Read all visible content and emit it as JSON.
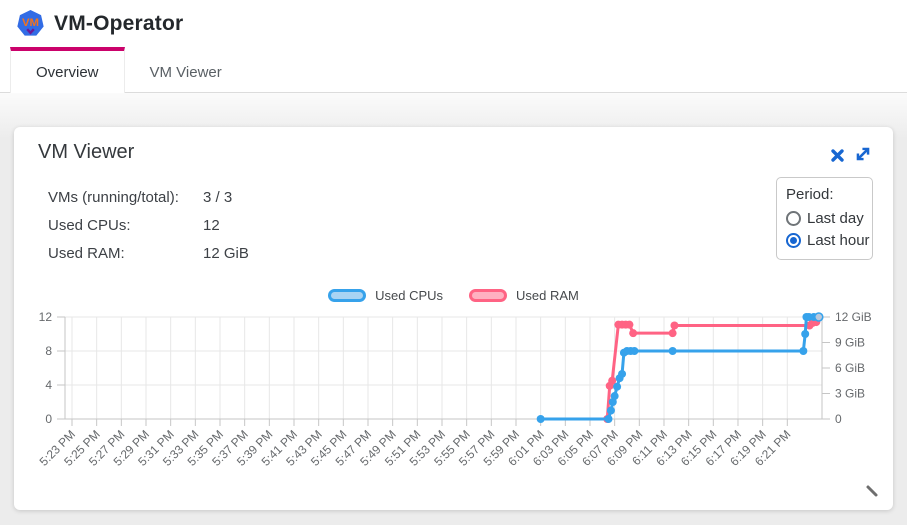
{
  "header": {
    "logo_text": "VM",
    "app_title": "VM-Operator",
    "tabs": [
      {
        "label": "Overview",
        "active": true
      },
      {
        "label": "VM Viewer",
        "active": false
      }
    ]
  },
  "card": {
    "title": "VM Viewer",
    "stats": [
      {
        "label": "VMs (running/total):",
        "value": "3 / 3"
      },
      {
        "label": "Used CPUs:",
        "value": "12"
      },
      {
        "label": "Used RAM:",
        "value": "12 GiB"
      }
    ],
    "period": {
      "label": "Period:",
      "options": [
        {
          "label": "Last day",
          "selected": false
        },
        {
          "label": "Last hour",
          "selected": true
        }
      ]
    }
  },
  "colors": {
    "tab_accent": "#cb026b",
    "icon_blue": "#1766d1",
    "cpu_blue": "#36a2eb",
    "ram_pink": "#ff6384"
  },
  "chart_data": {
    "type": "line",
    "legend": [
      {
        "label": "Used CPUs",
        "color": "#36a2eb",
        "fill": "#a8d3f3"
      },
      {
        "label": "Used RAM",
        "color": "#ff6384",
        "fill": "#ffb0c1"
      }
    ],
    "x_tick_labels": [
      "5:23 PM",
      "5:25 PM",
      "5:27 PM",
      "5:29 PM",
      "5:31 PM",
      "5:33 PM",
      "5:35 PM",
      "5:37 PM",
      "5:39 PM",
      "5:41 PM",
      "5:43 PM",
      "5:45 PM",
      "5:47 PM",
      "5:49 PM",
      "5:51 PM",
      "5:53 PM",
      "5:55 PM",
      "5:57 PM",
      "5:59 PM",
      "6:01 PM",
      "6:03 PM",
      "6:05 PM",
      "6:07 PM",
      "6:09 PM",
      "6:11 PM",
      "6:13 PM",
      "6:15 PM",
      "6:17 PM",
      "6:19 PM",
      "6:21 PM"
    ],
    "x_minutes_per_tick": 2,
    "y_left": {
      "range": [
        0,
        12
      ],
      "ticks": [
        {
          "v": 0,
          "label": "0"
        },
        {
          "v": 4,
          "label": "4"
        },
        {
          "v": 8,
          "label": "8"
        },
        {
          "v": 12,
          "label": "12"
        }
      ]
    },
    "y_right": {
      "range": [
        0,
        12
      ],
      "ticks": [
        {
          "v": 0,
          "label": "0"
        },
        {
          "v": 3,
          "label": "3 GiB"
        },
        {
          "v": 6,
          "label": "6 GiB"
        },
        {
          "v": 9,
          "label": "9 GiB"
        },
        {
          "v": 12,
          "label": "12 GiB"
        }
      ]
    },
    "series": [
      {
        "name": "Used RAM",
        "axis": "right",
        "color": "#ff6384",
        "points": [
          [
            43.4,
            0
          ],
          [
            43.6,
            3.9
          ],
          [
            43.8,
            4.5
          ],
          [
            44.3,
            11.1
          ],
          [
            44.6,
            11.1
          ],
          [
            44.9,
            11.1
          ],
          [
            45.2,
            11.1
          ],
          [
            45.5,
            10.1
          ],
          [
            48.7,
            10.1
          ],
          [
            48.85,
            11
          ],
          [
            59.8,
            11
          ],
          [
            60.05,
            11.3
          ],
          [
            60.35,
            11.4
          ]
        ]
      },
      {
        "name": "Used CPUs",
        "axis": "left",
        "color": "#36a2eb",
        "end_fill": "#b9c8dc",
        "points": [
          [
            38,
            0
          ],
          [
            43.5,
            0
          ],
          [
            43.7,
            1
          ],
          [
            43.85,
            2
          ],
          [
            44.0,
            2.7
          ],
          [
            44.2,
            3.8
          ],
          [
            44.4,
            4.8
          ],
          [
            44.6,
            5.3
          ],
          [
            44.75,
            7.8
          ],
          [
            45.0,
            8
          ],
          [
            45.3,
            8
          ],
          [
            45.6,
            8
          ],
          [
            48.7,
            8
          ],
          [
            59.3,
            8
          ],
          [
            59.45,
            10
          ],
          [
            59.55,
            12
          ],
          [
            59.75,
            12
          ],
          [
            60.15,
            12
          ],
          [
            60.55,
            12
          ]
        ]
      }
    ]
  }
}
